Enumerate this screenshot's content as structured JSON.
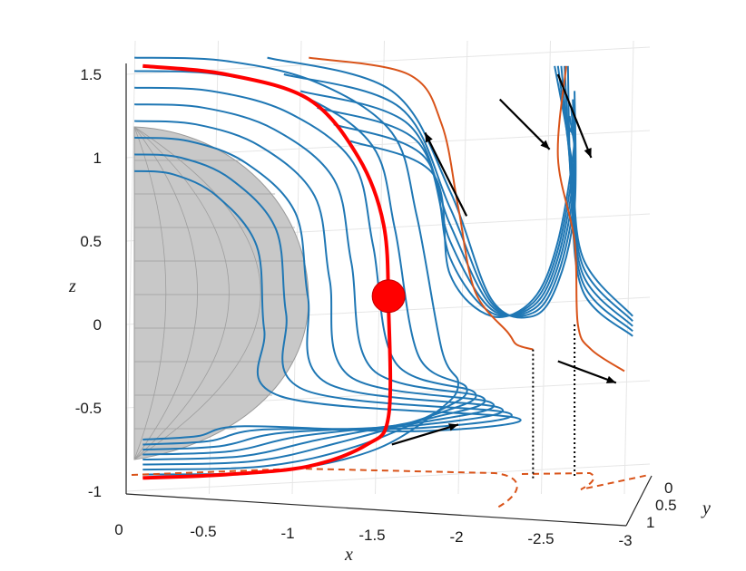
{
  "chart_data": {
    "type": "line",
    "view": "3d",
    "title": "",
    "xlabel": "x",
    "ylabel": "y",
    "zlabel": "z",
    "xlim": [
      -3,
      0
    ],
    "ylim": [
      0,
      1
    ],
    "zlim": [
      -1,
      1.6
    ],
    "grid": true,
    "x_ticks": [
      0,
      -0.5,
      -1,
      -1.5,
      -2,
      -2.5,
      -3
    ],
    "x_tick_labels": [
      "0",
      "-0.5",
      "-1",
      "-1.5",
      "-2",
      "-2.5",
      "-3"
    ],
    "y_ticks": [
      0,
      0.5,
      1
    ],
    "y_tick_labels": [
      "0",
      "0.5",
      "1"
    ],
    "z_ticks": [
      1.5,
      1,
      0.5,
      0,
      -0.5,
      -1
    ],
    "z_tick_labels": [
      "1.5",
      "1",
      "0.5",
      "0",
      "-0.5",
      "-1"
    ],
    "colors": {
      "blue": "#1f77b4",
      "orange": "#d95319",
      "red": "#ff0000",
      "sphere": "#c8c8c8",
      "arrows": "#000000"
    },
    "sphere": {
      "center": [
        0,
        0,
        0
      ],
      "radius": 1
    },
    "red_ball": {
      "x": -1.58,
      "z": 0.17
    },
    "red_curve": [
      [
        -0.1,
        -0.92
      ],
      [
        -0.6,
        -0.9
      ],
      [
        -1.1,
        -0.85
      ],
      [
        -1.45,
        -0.72
      ],
      [
        -1.58,
        -0.55
      ],
      [
        -1.58,
        0.1
      ],
      [
        -1.55,
        0.6
      ],
      [
        -1.4,
        1.0
      ],
      [
        -1.1,
        1.35
      ],
      [
        -0.6,
        1.5
      ],
      [
        -0.1,
        1.55
      ]
    ],
    "blue_loops_left_z": [
      1.6,
      1.52,
      1.42,
      1.32,
      1.22,
      1.12,
      1.02,
      0.92
    ],
    "blue_loops_right_z": [
      1.6,
      1.5,
      1.4,
      1.3,
      1.2,
      1.1
    ],
    "orange_curves": [
      [
        [
          -1.1,
          1.6
        ],
        [
          -1.7,
          1.5
        ],
        [
          -1.9,
          1.2
        ],
        [
          -2.0,
          0.7
        ],
        [
          -2.1,
          0.2
        ],
        [
          -2.3,
          -0.05
        ],
        [
          -2.35,
          -0.12
        ],
        [
          -2.45,
          -0.15
        ]
      ],
      [
        [
          -2.65,
          1.55
        ],
        [
          -2.6,
          1.0
        ],
        [
          -2.7,
          0.5
        ],
        [
          -2.72,
          0.0
        ],
        [
          -2.8,
          -0.15
        ],
        [
          -3.0,
          -0.28
        ]
      ]
    ],
    "dotted_drops": [
      {
        "x": -2.45,
        "z_top": -0.15
      },
      {
        "x": -2.7,
        "z_top": 0.0
      }
    ],
    "arrows": [
      {
        "from": [
          -1.6,
          -0.72
        ],
        "to": [
          -2.0,
          -0.6
        ]
      },
      {
        "from": [
          -2.05,
          0.65
        ],
        "to": [
          -1.8,
          1.15
        ]
      },
      {
        "from": [
          -2.25,
          1.35
        ],
        "to": [
          -2.55,
          1.05
        ]
      },
      {
        "from": [
          -2.6,
          1.5
        ],
        "to": [
          -2.8,
          1.0
        ]
      },
      {
        "from": [
          -2.6,
          -0.22
        ],
        "to": [
          -2.95,
          -0.35
        ]
      }
    ]
  }
}
